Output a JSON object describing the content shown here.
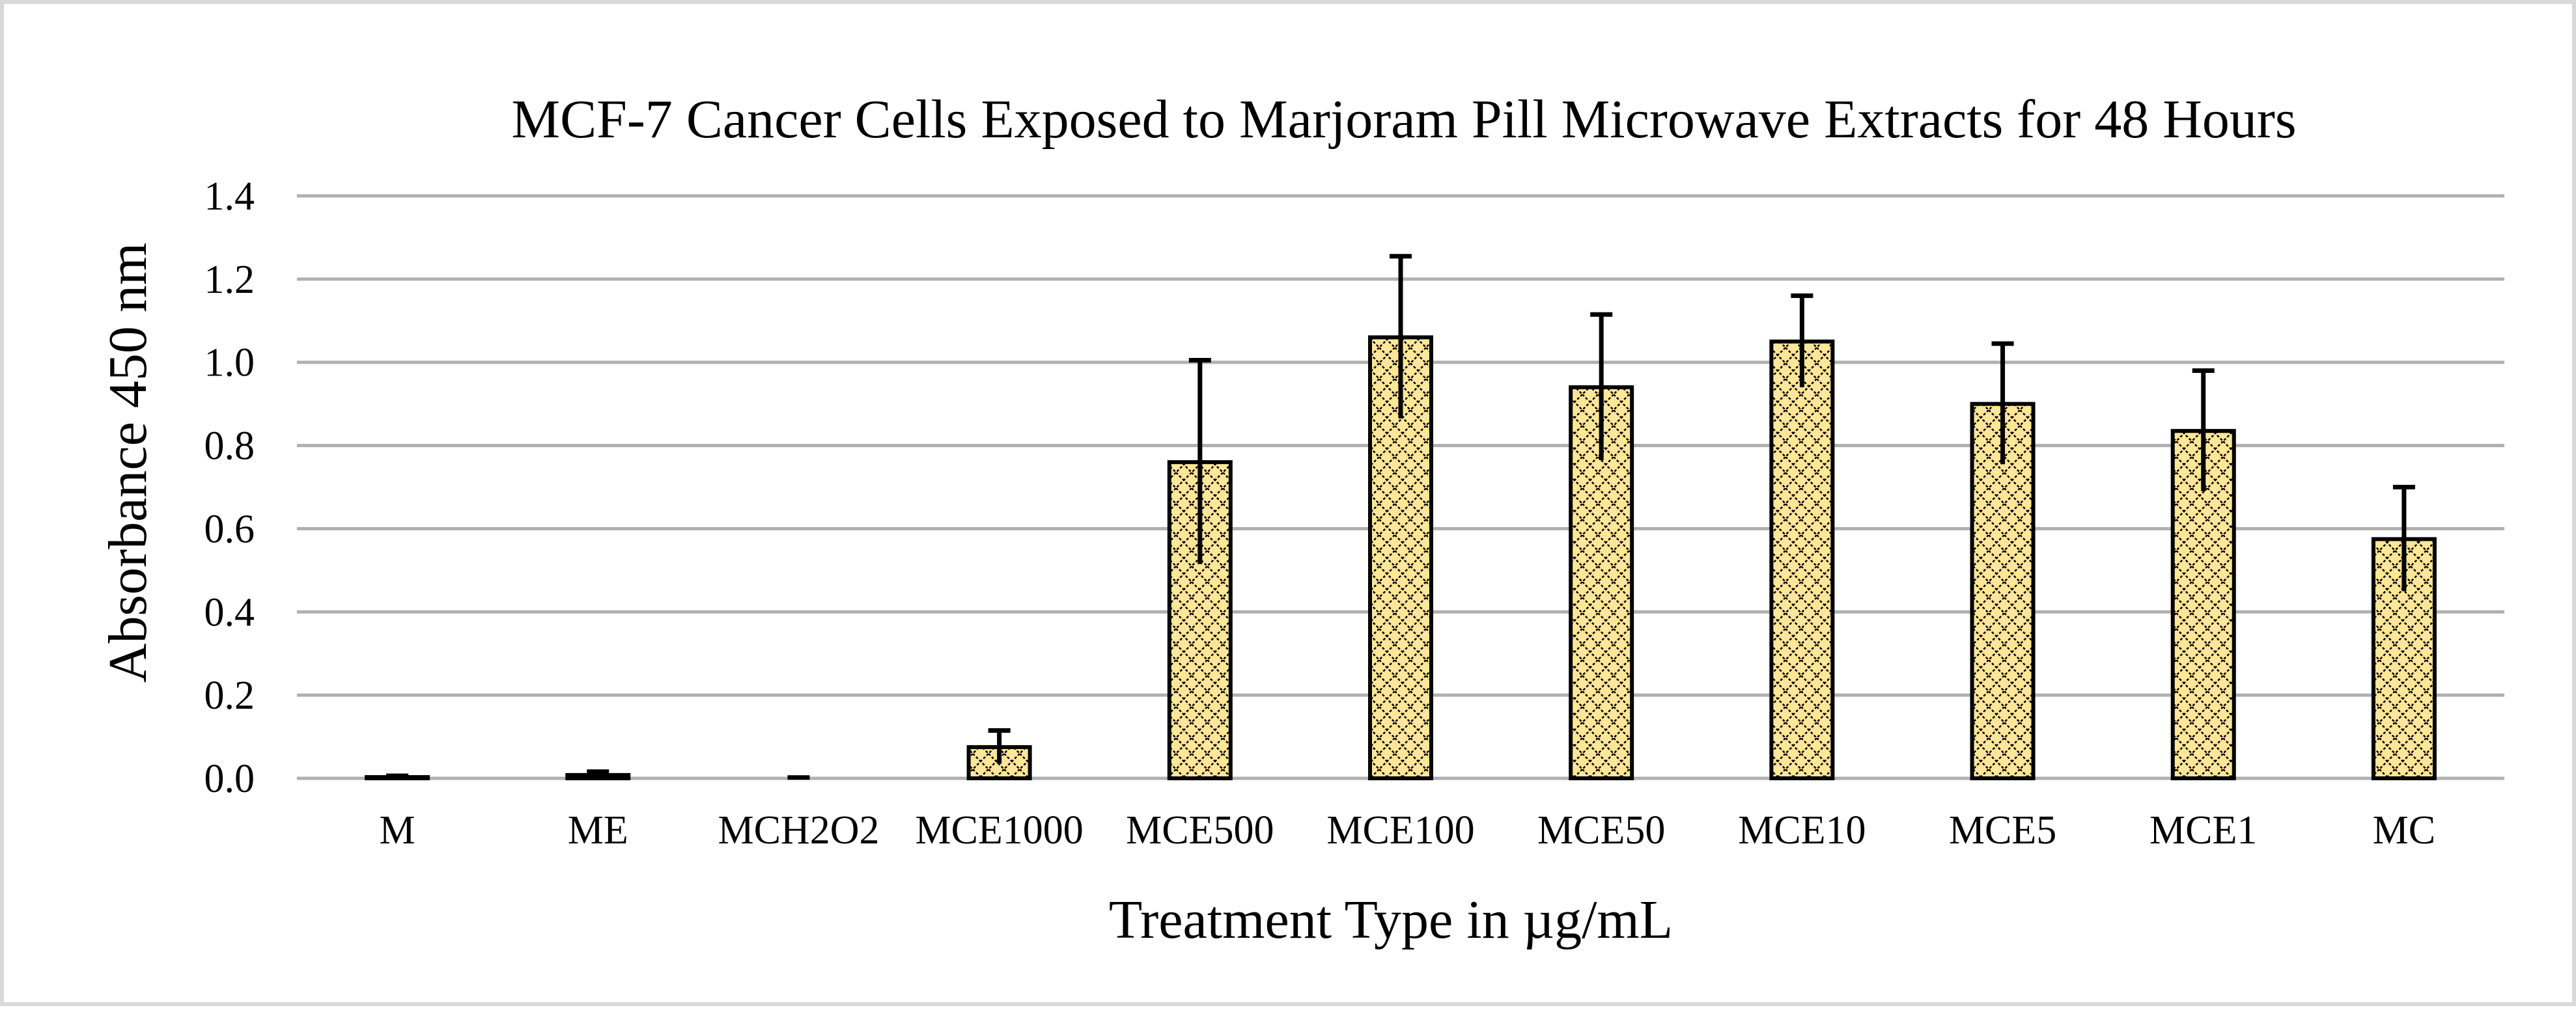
{
  "chart_data": {
    "type": "bar",
    "title": "MCF-7 Cancer Cells Exposed to Marjoram Pill Microwave Extracts for 48 Hours",
    "xlabel": "Treatment Type in µg/mL",
    "ylabel": "Absorbance 450 nm",
    "ylim": [
      0,
      1.4
    ],
    "yticks": [
      "0.0",
      "0.2",
      "0.4",
      "0.6",
      "0.8",
      "1.0",
      "1.2",
      "1.4"
    ],
    "ytick_values": [
      0,
      0.2,
      0.4,
      0.6,
      0.8,
      1.0,
      1.2,
      1.4
    ],
    "grid": true,
    "legend": "none",
    "categories": [
      "M",
      "ME",
      "MCH2O2",
      "MCE1000",
      "MCE500",
      "MCE100",
      "MCE50",
      "MCE10",
      "MCE5",
      "MCE1",
      "MC"
    ],
    "values": [
      0.003,
      0.008,
      0.0,
      0.075,
      0.76,
      1.06,
      0.94,
      1.05,
      0.9,
      0.835,
      0.575
    ],
    "errors": [
      0.003,
      0.008,
      0.002,
      0.04,
      0.245,
      0.195,
      0.175,
      0.11,
      0.145,
      0.145,
      0.125
    ],
    "bar_fill": "#ffe699",
    "bar_stroke": "#000000",
    "pattern_color": "#000000",
    "gridline_color": "#b0b0b0"
  }
}
